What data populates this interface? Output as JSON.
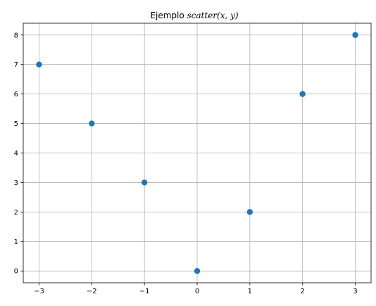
{
  "chart_data": {
    "type": "scatter",
    "title": {
      "prefix": "Ejemplo ",
      "math": "scatter(x, y)"
    },
    "xlabel": "",
    "ylabel": "",
    "x": [
      -3,
      -2,
      -1,
      0,
      1,
      2,
      3
    ],
    "y": [
      7,
      5,
      3,
      0,
      2,
      6,
      8
    ],
    "xlim": [
      -3.3,
      3.3
    ],
    "ylim": [
      -0.4,
      8.4
    ],
    "xticks": [
      "−3",
      "−2",
      "−1",
      "0",
      "1",
      "2",
      "3"
    ],
    "yticks": [
      "0",
      "1",
      "2",
      "3",
      "4",
      "5",
      "6",
      "7",
      "8"
    ],
    "grid": true,
    "marker_color": "#1f77b4",
    "grid_color": "#b0b0b0"
  }
}
